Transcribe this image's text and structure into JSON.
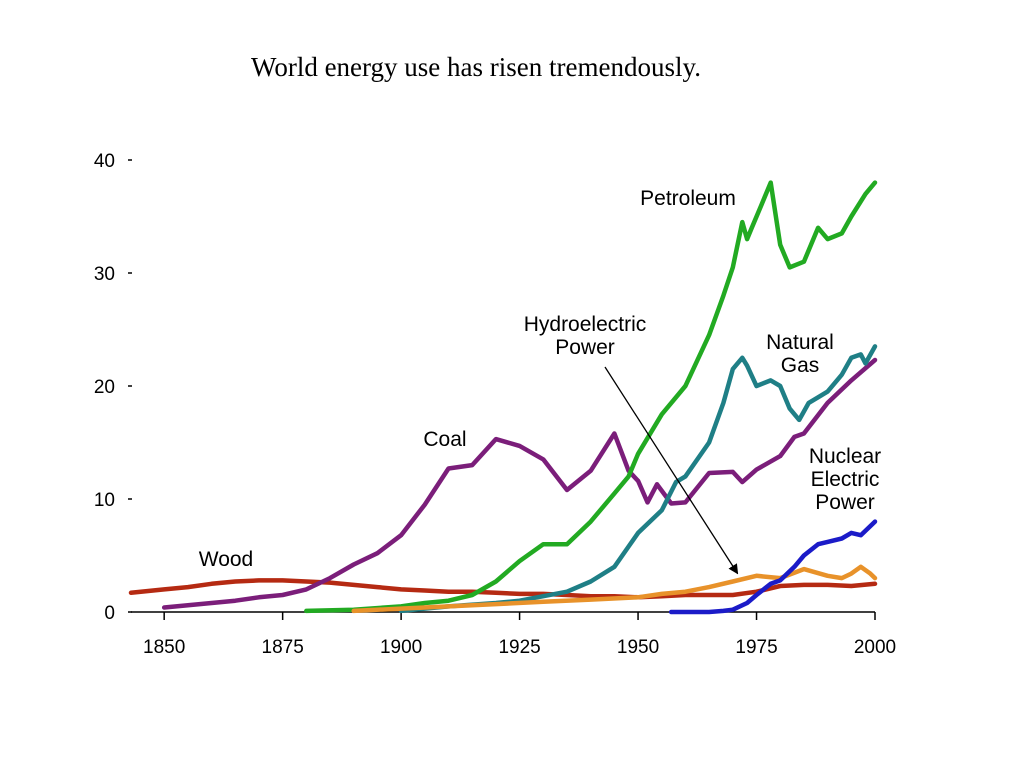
{
  "slide": {
    "title": "World energy use has risen tremendously."
  },
  "chart_data": {
    "type": "line",
    "title": "World energy use has risen tremendously.",
    "xlabel": "",
    "ylabel": "",
    "xlim": [
      1843,
      2000
    ],
    "ylim": [
      0,
      40
    ],
    "x_ticks": [
      1850,
      1875,
      1900,
      1925,
      1950,
      1975,
      2000
    ],
    "y_ticks": [
      0,
      10,
      20,
      30,
      40
    ],
    "grid": false,
    "legend": "none",
    "series": [
      {
        "name": "Wood",
        "color": "#b52a12",
        "points": [
          [
            1843,
            1.7
          ],
          [
            1850,
            2.0
          ],
          [
            1855,
            2.2
          ],
          [
            1860,
            2.5
          ],
          [
            1865,
            2.7
          ],
          [
            1870,
            2.8
          ],
          [
            1875,
            2.8
          ],
          [
            1880,
            2.7
          ],
          [
            1885,
            2.6
          ],
          [
            1890,
            2.4
          ],
          [
            1895,
            2.2
          ],
          [
            1900,
            2.0
          ],
          [
            1905,
            1.9
          ],
          [
            1910,
            1.8
          ],
          [
            1915,
            1.8
          ],
          [
            1920,
            1.7
          ],
          [
            1925,
            1.6
          ],
          [
            1930,
            1.6
          ],
          [
            1935,
            1.5
          ],
          [
            1940,
            1.4
          ],
          [
            1945,
            1.4
          ],
          [
            1950,
            1.3
          ],
          [
            1955,
            1.4
          ],
          [
            1960,
            1.5
          ],
          [
            1965,
            1.5
          ],
          [
            1970,
            1.5
          ],
          [
            1975,
            1.8
          ],
          [
            1980,
            2.3
          ],
          [
            1985,
            2.4
          ],
          [
            1990,
            2.4
          ],
          [
            1995,
            2.3
          ],
          [
            2000,
            2.5
          ]
        ]
      },
      {
        "name": "Coal",
        "color": "#7b1e7a",
        "points": [
          [
            1850,
            0.4
          ],
          [
            1855,
            0.6
          ],
          [
            1860,
            0.8
          ],
          [
            1865,
            1.0
          ],
          [
            1870,
            1.3
          ],
          [
            1875,
            1.5
          ],
          [
            1880,
            2.0
          ],
          [
            1885,
            3.0
          ],
          [
            1890,
            4.2
          ],
          [
            1895,
            5.2
          ],
          [
            1900,
            6.8
          ],
          [
            1905,
            9.5
          ],
          [
            1910,
            12.7
          ],
          [
            1915,
            13.0
          ],
          [
            1920,
            15.3
          ],
          [
            1925,
            14.7
          ],
          [
            1930,
            13.5
          ],
          [
            1935,
            10.8
          ],
          [
            1940,
            12.5
          ],
          [
            1945,
            15.8
          ],
          [
            1948,
            12.5
          ],
          [
            1950,
            11.6
          ],
          [
            1952,
            9.7
          ],
          [
            1954,
            11.3
          ],
          [
            1957,
            9.6
          ],
          [
            1960,
            9.7
          ],
          [
            1965,
            12.3
          ],
          [
            1970,
            12.4
          ],
          [
            1972,
            11.5
          ],
          [
            1975,
            12.6
          ],
          [
            1980,
            13.8
          ],
          [
            1983,
            15.5
          ],
          [
            1985,
            15.8
          ],
          [
            1990,
            18.5
          ],
          [
            1995,
            20.5
          ],
          [
            2000,
            22.3
          ]
        ]
      },
      {
        "name": "Petroleum",
        "color": "#22aa22",
        "points": [
          [
            1880,
            0.1
          ],
          [
            1890,
            0.2
          ],
          [
            1900,
            0.5
          ],
          [
            1905,
            0.8
          ],
          [
            1910,
            1.0
          ],
          [
            1915,
            1.5
          ],
          [
            1920,
            2.7
          ],
          [
            1925,
            4.5
          ],
          [
            1930,
            6.0
          ],
          [
            1935,
            6.0
          ],
          [
            1940,
            8.0
          ],
          [
            1945,
            10.5
          ],
          [
            1948,
            12.0
          ],
          [
            1950,
            14.0
          ],
          [
            1955,
            17.5
          ],
          [
            1960,
            20.0
          ],
          [
            1965,
            24.5
          ],
          [
            1968,
            28.0
          ],
          [
            1970,
            30.5
          ],
          [
            1972,
            34.5
          ],
          [
            1973,
            33.0
          ],
          [
            1974,
            34.0
          ],
          [
            1976,
            36.0
          ],
          [
            1978,
            38.0
          ],
          [
            1980,
            32.5
          ],
          [
            1982,
            30.5
          ],
          [
            1985,
            31.0
          ],
          [
            1988,
            34.0
          ],
          [
            1990,
            33.0
          ],
          [
            1993,
            33.5
          ],
          [
            1995,
            35.0
          ],
          [
            1998,
            37.0
          ],
          [
            2000,
            38.0
          ]
        ]
      },
      {
        "name": "Natural Gas",
        "color": "#1f7f86",
        "points": [
          [
            1900,
            0.1
          ],
          [
            1910,
            0.5
          ],
          [
            1920,
            0.8
          ],
          [
            1925,
            1.0
          ],
          [
            1930,
            1.4
          ],
          [
            1935,
            1.8
          ],
          [
            1940,
            2.7
          ],
          [
            1945,
            4.0
          ],
          [
            1948,
            5.8
          ],
          [
            1950,
            7.0
          ],
          [
            1955,
            9.0
          ],
          [
            1958,
            11.5
          ],
          [
            1960,
            12.0
          ],
          [
            1965,
            15.0
          ],
          [
            1968,
            18.5
          ],
          [
            1970,
            21.5
          ],
          [
            1972,
            22.5
          ],
          [
            1973,
            21.8
          ],
          [
            1975,
            20.0
          ],
          [
            1978,
            20.5
          ],
          [
            1980,
            20.0
          ],
          [
            1982,
            18.0
          ],
          [
            1984,
            17.0
          ],
          [
            1986,
            18.5
          ],
          [
            1988,
            19.0
          ],
          [
            1990,
            19.5
          ],
          [
            1993,
            21.0
          ],
          [
            1995,
            22.5
          ],
          [
            1997,
            22.8
          ],
          [
            1998,
            22.0
          ],
          [
            2000,
            23.5
          ]
        ]
      },
      {
        "name": "Hydroelectric Power",
        "color": "#e8922a",
        "points": [
          [
            1890,
            0.1
          ],
          [
            1900,
            0.3
          ],
          [
            1910,
            0.5
          ],
          [
            1920,
            0.7
          ],
          [
            1930,
            0.9
          ],
          [
            1940,
            1.1
          ],
          [
            1950,
            1.3
          ],
          [
            1955,
            1.6
          ],
          [
            1960,
            1.8
          ],
          [
            1965,
            2.2
          ],
          [
            1970,
            2.7
          ],
          [
            1975,
            3.2
          ],
          [
            1980,
            3.0
          ],
          [
            1985,
            3.8
          ],
          [
            1990,
            3.2
          ],
          [
            1993,
            3.0
          ],
          [
            1995,
            3.4
          ],
          [
            1997,
            4.0
          ],
          [
            1999,
            3.4
          ],
          [
            2000,
            3.0
          ]
        ]
      },
      {
        "name": "Nuclear Electric Power",
        "color": "#1b1bc8",
        "points": [
          [
            1957,
            0.0
          ],
          [
            1960,
            0.0
          ],
          [
            1965,
            0.0
          ],
          [
            1968,
            0.1
          ],
          [
            1970,
            0.2
          ],
          [
            1973,
            0.8
          ],
          [
            1975,
            1.5
          ],
          [
            1978,
            2.5
          ],
          [
            1980,
            2.8
          ],
          [
            1983,
            4.0
          ],
          [
            1985,
            5.0
          ],
          [
            1988,
            6.0
          ],
          [
            1990,
            6.2
          ],
          [
            1993,
            6.5
          ],
          [
            1995,
            7.0
          ],
          [
            1997,
            6.8
          ],
          [
            2000,
            8.0
          ]
        ]
      }
    ],
    "annotations": [
      {
        "lines": [
          "Petroleum"
        ],
        "series": "Petroleum"
      },
      {
        "lines": [
          "Hydroelectric",
          "Power"
        ],
        "series": "Hydroelectric Power",
        "arrow_to": [
          1971,
          2.7
        ]
      },
      {
        "lines": [
          "Natural",
          "Gas"
        ],
        "series": "Natural Gas"
      },
      {
        "lines": [
          "Coal"
        ],
        "series": "Coal"
      },
      {
        "lines": [
          "Nuclear",
          "Electric",
          "Power"
        ],
        "series": "Nuclear Electric Power"
      },
      {
        "lines": [
          "Wood"
        ],
        "series": "Wood"
      }
    ]
  }
}
